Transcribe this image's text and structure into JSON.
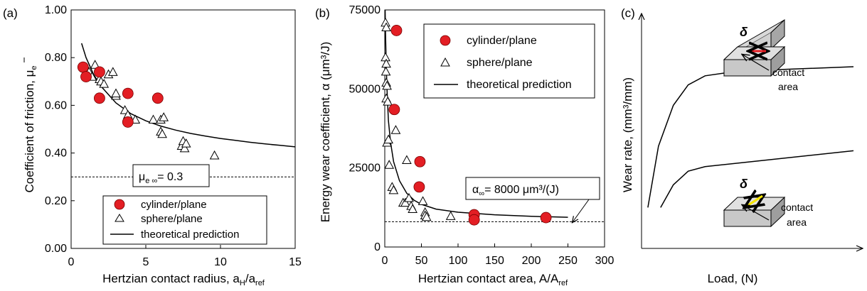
{
  "chart_data": [
    {
      "type": "scatter",
      "panel_label": "(a)",
      "xlabel": "Hertzian contact radius, a",
      "xlabel_sub1": "H",
      "xlabel_mid": "/a",
      "xlabel_sub2": "ref",
      "ylabel": "Coefficient of friction, μ",
      "ylabel_sub": "e",
      "xlim": [
        0,
        15
      ],
      "ylim": [
        0.0,
        1.0
      ],
      "xticks": [
        "0",
        "5",
        "10",
        "15"
      ],
      "yticks": [
        "0.00",
        "0.20",
        "0.40",
        "0.60",
        "0.80",
        "1.00"
      ],
      "annotation": {
        "text_main": "μ",
        "text_sub": "e ∞",
        "text_rest": "= 0.3"
      },
      "asymptote": 0.3,
      "legend": [
        "cylinder/plane",
        "sphere/plane",
        "theoretical prediction"
      ],
      "series": [
        {
          "name": "cylinder/plane",
          "marker": "circle",
          "color": "#e31e24",
          "points": [
            [
              0.8,
              0.76
            ],
            [
              1.0,
              0.72
            ],
            [
              1.9,
              0.74
            ],
            [
              1.9,
              0.63
            ],
            [
              3.8,
              0.65
            ],
            [
              3.8,
              0.53
            ],
            [
              5.8,
              0.63
            ]
          ]
        },
        {
          "name": "sphere/plane",
          "marker": "triangle",
          "points": [
            [
              1.0,
              0.76
            ],
            [
              1.2,
              0.74
            ],
            [
              1.4,
              0.72
            ],
            [
              1.6,
              0.77
            ],
            [
              1.9,
              0.71
            ],
            [
              2.0,
              0.7
            ],
            [
              2.2,
              0.69
            ],
            [
              2.5,
              0.73
            ],
            [
              2.8,
              0.74
            ],
            [
              3.0,
              0.64
            ],
            [
              3.0,
              0.65
            ],
            [
              3.6,
              0.58
            ],
            [
              3.8,
              0.56
            ],
            [
              4.3,
              0.54
            ],
            [
              5.5,
              0.54
            ],
            [
              6.0,
              0.54
            ],
            [
              6.0,
              0.49
            ],
            [
              6.1,
              0.48
            ],
            [
              6.2,
              0.55
            ],
            [
              7.4,
              0.43
            ],
            [
              7.5,
              0.45
            ],
            [
              7.6,
              0.42
            ],
            [
              7.7,
              0.44
            ],
            [
              9.6,
              0.39
            ]
          ]
        },
        {
          "name": "theoretical prediction",
          "marker": "line",
          "points": [
            [
              0.7,
              0.86
            ],
            [
              1.0,
              0.8
            ],
            [
              1.5,
              0.73
            ],
            [
              2.0,
              0.68
            ],
            [
              3.0,
              0.61
            ],
            [
              4.0,
              0.565
            ],
            [
              5.0,
              0.535
            ],
            [
              6.0,
              0.513
            ],
            [
              7.0,
              0.496
            ],
            [
              8.0,
              0.482
            ],
            [
              9.0,
              0.471
            ],
            [
              10.0,
              0.461
            ],
            [
              11.0,
              0.453
            ],
            [
              12.0,
              0.445
            ],
            [
              13.0,
              0.438
            ],
            [
              14.0,
              0.432
            ],
            [
              15.0,
              0.426
            ]
          ]
        }
      ]
    },
    {
      "type": "scatter",
      "panel_label": "(b)",
      "xlabel": "Hertzian contact area, A/A",
      "xlabel_sub": "ref",
      "ylabel": "Energy wear coefficient, α (μm³/J)",
      "xlim": [
        0,
        300
      ],
      "ylim": [
        0,
        75000
      ],
      "xticks": [
        "0",
        "50",
        "100",
        "150",
        "200",
        "250",
        "300"
      ],
      "yticks": [
        "0",
        "25000",
        "50000",
        "75000"
      ],
      "annotation": {
        "text_main": "α",
        "text_sub": "∞",
        "text_rest": "= 8000 μm³/(J)"
      },
      "asymptote": 8000,
      "legend": [
        "cylinder/plane",
        "sphere/plane",
        "theoretical prediction"
      ],
      "series": [
        {
          "name": "cylinder/plane",
          "marker": "circle",
          "color": "#e31e24",
          "points": [
            [
              16,
              68500
            ],
            [
              13,
              43500
            ],
            [
              48,
              27000
            ],
            [
              47,
              19000
            ],
            [
              122,
              10200
            ],
            [
              122,
              8600
            ],
            [
              220,
              9300
            ]
          ]
        },
        {
          "name": "sphere/plane",
          "marker": "triangle",
          "points": [
            [
              1,
              71000
            ],
            [
              2,
              69500
            ],
            [
              1,
              60000
            ],
            [
              2,
              58000
            ],
            [
              1.5,
              55500
            ],
            [
              2,
              52000
            ],
            [
              3,
              51000
            ],
            [
              2,
              47000
            ],
            [
              4,
              46000
            ],
            [
              3,
              33000
            ],
            [
              5,
              34000
            ],
            [
              6,
              26000
            ],
            [
              10,
              19000
            ],
            [
              12,
              18000
            ],
            [
              15,
              37000
            ],
            [
              25,
              14000
            ],
            [
              28,
              14000
            ],
            [
              30,
              27500
            ],
            [
              33,
              15500
            ],
            [
              36,
              13000
            ],
            [
              38,
              12000
            ],
            [
              52,
              14500
            ],
            [
              55,
              11000
            ],
            [
              55,
              10000
            ],
            [
              57,
              9500
            ],
            [
              90,
              9800
            ]
          ]
        },
        {
          "name": "theoretical prediction",
          "marker": "line",
          "points": [
            [
              0.5,
              75000
            ],
            [
              1,
              68000
            ],
            [
              2,
              57000
            ],
            [
              3,
              50000
            ],
            [
              5,
              40000
            ],
            [
              8,
              33000
            ],
            [
              12,
              27000
            ],
            [
              20,
              21000
            ],
            [
              30,
              17000
            ],
            [
              40,
              14800
            ],
            [
              50,
              13500
            ],
            [
              70,
              12000
            ],
            [
              100,
              11000
            ],
            [
              150,
              10200
            ],
            [
              200,
              9700
            ],
            [
              250,
              9400
            ]
          ]
        }
      ]
    },
    {
      "type": "line",
      "panel_label": "(c)",
      "xlabel": "Load, (N)",
      "ylabel": "Wear rate, (mm³/mm)",
      "symbol": "δ",
      "inset_label_line1": "contact",
      "inset_label_line2": "area",
      "series": [
        {
          "name": "upper",
          "points": [
            [
              0.03,
              0.18
            ],
            [
              0.08,
              0.45
            ],
            [
              0.15,
              0.63
            ],
            [
              0.22,
              0.72
            ],
            [
              0.3,
              0.76
            ],
            [
              0.45,
              0.78
            ],
            [
              1.0,
              0.8
            ]
          ]
        },
        {
          "name": "lower",
          "points": [
            [
              0.09,
              0.18
            ],
            [
              0.15,
              0.28
            ],
            [
              0.22,
              0.34
            ],
            [
              0.3,
              0.36
            ],
            [
              0.5,
              0.38
            ],
            [
              1.0,
              0.43
            ]
          ]
        }
      ]
    }
  ]
}
